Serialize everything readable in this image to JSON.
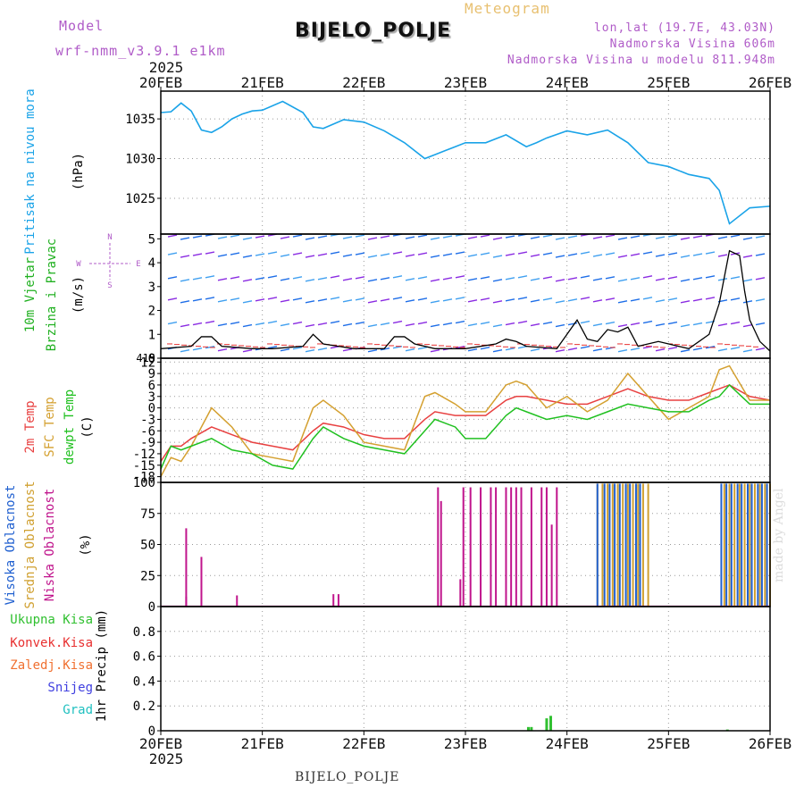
{
  "header": {
    "model_label": "Model",
    "model_name": "wrf-nmm_v3.9.1 e1km",
    "meteogram_label": "Meteogram",
    "station": "BIJELO_POLJE",
    "location": "lon,lat (19.7E, 43.03N)",
    "elevation": "Nadmorska Visina 606m",
    "model_elevation": "Nadmorska Visina u modelu 811.948m"
  },
  "footer": {
    "station": "BIJELO_POLJE",
    "credit": "made by Angel"
  },
  "time_axis": {
    "year": "2025",
    "ticks": [
      "20FEB",
      "21FEB",
      "22FEB",
      "23FEB",
      "24FEB",
      "25FEB",
      "26FEB"
    ]
  },
  "panels": {
    "pressure": {
      "label": "Pritisak na nivou mora",
      "unit": "(hPa)",
      "color": "#1aa3e8"
    },
    "wind": {
      "label_line1": "10m Vjetar",
      "label_line2": "Brzina i Pravac",
      "unit": "(m/s)",
      "top_tick": "4.5",
      "compass": "N",
      "compass_s": "S",
      "compass_w": "W",
      "compass_e": "E"
    },
    "temperature": {
      "label_2m": "2m Temp",
      "label_sfc": "SFC Temp",
      "label_dew": "dewpt Temp",
      "unit": "(C)",
      "top_tick": "13"
    },
    "cloud": {
      "label_high": "Visoka Oblacnost",
      "label_mid": "Srednja Oblacnost",
      "label_low": "Niska Oblacnost",
      "unit": "(%)"
    },
    "precip": {
      "legend": [
        "Ukupna Kisa",
        "Konvek.Kisa",
        "Zaledj.Kisa",
        "Snijeg",
        "Grad"
      ],
      "unit": "1hr Precip (mm)"
    }
  },
  "colors": {
    "pressure": "#1aa3e8",
    "temp2m": "#e84040",
    "sfc": "#d4a030",
    "dew": "#20c020",
    "wind_speed": "#000000",
    "cloud_high": "#2060d0",
    "cloud_mid": "#d0a030",
    "cloud_low": "#c0148c",
    "precip_total": "#30c030",
    "precip_conv": "#e83030",
    "precip_frz": "#f07030",
    "precip_snow": "#4040e0",
    "precip_hail": "#20c0c0"
  },
  "chart_data": [
    {
      "type": "line",
      "title": "Pritisak na nivou mora",
      "ylabel": "(hPa)",
      "ylim": [
        1020.5,
        1038.5
      ],
      "yticks": [
        1025,
        1030,
        1035
      ],
      "x_days": [
        0,
        0.1,
        0.2,
        0.3,
        0.4,
        0.5,
        0.6,
        0.7,
        0.8,
        0.9,
        1.0,
        1.2,
        1.4,
        1.5,
        1.6,
        1.8,
        2.0,
        2.2,
        2.4,
        2.6,
        2.7,
        2.8,
        3.0,
        3.2,
        3.4,
        3.6,
        3.7,
        3.8,
        4.0,
        4.2,
        4.4,
        4.6,
        4.8,
        5.0,
        5.2,
        5.4,
        5.5,
        5.6,
        5.8,
        6.0
      ],
      "values": [
        1035.8,
        1035.9,
        1037.0,
        1036.0,
        1033.6,
        1033.3,
        1034.0,
        1035.0,
        1035.6,
        1036.0,
        1036.1,
        1037.2,
        1035.8,
        1034.0,
        1033.8,
        1034.9,
        1034.6,
        1033.5,
        1032.0,
        1030.0,
        1030.5,
        1031.0,
        1032.0,
        1032.0,
        1033.0,
        1031.5,
        1032.0,
        1032.6,
        1033.5,
        1033.0,
        1033.6,
        1032.0,
        1029.5,
        1029.0,
        1028.0,
        1027.5,
        1026.0,
        1021.8,
        1023.8,
        1024.0
      ],
      "grid": true
    },
    {
      "type": "line",
      "title": "10m Vjetar Brzina i Pravac",
      "ylabel": "(m/s)",
      "ylim": [
        0,
        5.2
      ],
      "yticks": [
        0,
        1,
        2,
        3,
        4,
        5
      ],
      "x_days": [
        0,
        0.3,
        0.4,
        0.5,
        0.6,
        0.9,
        1.1,
        1.4,
        1.5,
        1.6,
        1.9,
        2.2,
        2.3,
        2.4,
        2.5,
        2.7,
        3.0,
        3.3,
        3.4,
        3.5,
        3.6,
        3.9,
        4.1,
        4.2,
        4.3,
        4.4,
        4.5,
        4.6,
        4.7,
        4.9,
        5.2,
        5.4,
        5.5,
        5.6,
        5.7,
        5.75,
        5.8,
        5.9,
        6.0
      ],
      "series": [
        {
          "name": "Brzina",
          "values": [
            0.4,
            0.5,
            0.9,
            0.9,
            0.5,
            0.4,
            0.4,
            0.5,
            1.0,
            0.6,
            0.4,
            0.4,
            0.9,
            0.9,
            0.6,
            0.4,
            0.4,
            0.6,
            0.8,
            0.7,
            0.5,
            0.4,
            1.6,
            0.8,
            0.7,
            1.2,
            1.1,
            1.3,
            0.5,
            0.7,
            0.4,
            1.0,
            2.3,
            4.5,
            4.3,
            2.8,
            1.6,
            0.7,
            0.3
          ]
        }
      ],
      "grid": true
    },
    {
      "type": "line",
      "title": "2m Temp / SFC Temp / dewpt Temp",
      "ylabel": "(C)",
      "ylim": [
        -19.5,
        13
      ],
      "yticks": [
        -18,
        -15,
        -12,
        -9,
        -6,
        -3,
        0,
        3,
        6,
        9,
        12
      ],
      "x_days": [
        0,
        0.1,
        0.2,
        0.3,
        0.5,
        0.7,
        0.9,
        1.1,
        1.3,
        1.5,
        1.6,
        1.8,
        2.0,
        2.2,
        2.4,
        2.6,
        2.7,
        2.9,
        3.0,
        3.2,
        3.4,
        3.5,
        3.6,
        3.8,
        4.0,
        4.2,
        4.4,
        4.6,
        4.8,
        5.0,
        5.2,
        5.4,
        5.5,
        5.6,
        5.8,
        6.0
      ],
      "series": [
        {
          "name": "2m Temp",
          "values": [
            -14,
            -10,
            -10,
            -8,
            -5,
            -7,
            -9,
            -10,
            -11,
            -6,
            -4,
            -5,
            -7,
            -8,
            -8,
            -3,
            -1,
            -2,
            -2,
            -2,
            2,
            3,
            3,
            2,
            1,
            1,
            3,
            5,
            3,
            2,
            2,
            4,
            5,
            6,
            3,
            2
          ]
        },
        {
          "name": "SFC Temp",
          "values": [
            -18,
            -13,
            -14,
            -10,
            0,
            -5,
            -12,
            -13,
            -14,
            0,
            2,
            -2,
            -9,
            -10,
            -11,
            3,
            4,
            1,
            -1,
            -1,
            6,
            7,
            6,
            0,
            3,
            -1,
            2,
            9,
            3,
            -3,
            0,
            3,
            10,
            11,
            2,
            2
          ]
        },
        {
          "name": "dewpt Temp",
          "values": [
            -16,
            -10,
            -11,
            -10,
            -8,
            -11,
            -12,
            -15,
            -16,
            -8,
            -5,
            -8,
            -10,
            -11,
            -12,
            -6,
            -3,
            -5,
            -8,
            -8,
            -2,
            0,
            -1,
            -3,
            -2,
            -3,
            -1,
            1,
            0,
            -1,
            -1,
            2,
            3,
            6,
            1,
            1
          ]
        }
      ],
      "grid": true
    },
    {
      "type": "bar",
      "title": "Visoka / Srednja / Niska Oblacnost",
      "ylabel": "(%)",
      "ylim": [
        0,
        100
      ],
      "yticks": [
        0,
        25,
        50,
        75,
        100
      ],
      "series": [
        {
          "name": "Niska Oblacnost",
          "x_days": [
            0.25,
            0.25,
            0.4,
            0.75,
            1.7,
            1.75,
            2.73,
            2.76,
            2.95,
            2.98,
            3.05,
            3.15,
            3.25,
            3.3,
            3.4,
            3.45,
            3.5,
            3.55,
            3.65,
            3.75,
            3.8,
            3.85,
            3.9
          ],
          "values": [
            8,
            63,
            40,
            9,
            10,
            10,
            96,
            85,
            22,
            96,
            96,
            96,
            96,
            96,
            96,
            96,
            96,
            96,
            96,
            96,
            96,
            66,
            96
          ]
        },
        {
          "name": "Srednja Oblacnost",
          "x_days": [
            4.3,
            4.35,
            4.4,
            4.45,
            4.5,
            4.55,
            4.6,
            4.65,
            4.7,
            4.75,
            4.8,
            5.55,
            5.6,
            5.65,
            5.7,
            5.75,
            5.8,
            5.85,
            5.9,
            5.95,
            6.0
          ],
          "values": [
            99,
            99,
            99,
            99,
            99,
            99,
            99,
            99,
            99,
            99,
            99,
            99,
            99,
            99,
            99,
            99,
            99,
            99,
            99,
            99,
            99
          ]
        },
        {
          "name": "Visoka Oblacnost",
          "x_days": [
            4.3,
            4.37,
            4.42,
            4.47,
            4.52,
            4.58,
            4.62,
            4.68,
            4.72,
            5.52,
            5.57,
            5.62,
            5.68,
            5.72,
            5.78,
            5.82,
            5.88,
            5.92,
            5.97
          ],
          "values": [
            99,
            99,
            99,
            99,
            99,
            99,
            99,
            99,
            99,
            99,
            99,
            99,
            99,
            99,
            99,
            99,
            99,
            99,
            99
          ]
        }
      ],
      "grid": true
    },
    {
      "type": "bar",
      "title": "1hr Precip",
      "ylabel": "1hr Precip (mm)",
      "ylim": [
        0,
        1.0
      ],
      "yticks": [
        0,
        0.2,
        0.4,
        0.6,
        0.8
      ],
      "series": [
        {
          "name": "Ukupna Kisa",
          "x_days": [
            3.62,
            3.65,
            3.8,
            3.84,
            5.58
          ],
          "values": [
            0.03,
            0.03,
            0.1,
            0.12,
            0.01
          ]
        }
      ],
      "grid": true
    }
  ]
}
